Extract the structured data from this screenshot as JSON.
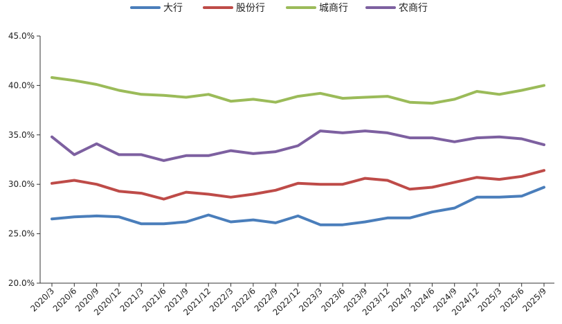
{
  "chart_data": {
    "type": "line",
    "title": "",
    "xlabel": "",
    "ylabel": "",
    "ylim": [
      20,
      45
    ],
    "yticks": [
      "20.0%",
      "25.0%",
      "30.0%",
      "35.0%",
      "40.0%",
      "45.0%"
    ],
    "ytick_values": [
      20,
      25,
      30,
      35,
      40,
      45
    ],
    "legend_position": "top",
    "grid": false,
    "categories": [
      "2020/3",
      "2020/6",
      "2020/9",
      "2020/12",
      "2021/3",
      "2021/6",
      "2021/9",
      "2021/12",
      "2022/3",
      "2022/6",
      "2022/9",
      "2022/12",
      "2023/3",
      "2023/6",
      "2023/9",
      "2023/12",
      "2024/3",
      "2024/6",
      "2024/9",
      "2024/12",
      "2025/3",
      "2025/6",
      "2025/9"
    ],
    "series": [
      {
        "name": "大行",
        "color": "#4a7ebb",
        "values": [
          26.5,
          26.7,
          26.8,
          26.7,
          26.0,
          26.0,
          26.2,
          26.9,
          26.2,
          26.4,
          26.1,
          26.8,
          25.9,
          25.9,
          26.2,
          26.6,
          26.6,
          27.2,
          27.6,
          28.7,
          28.7,
          28.8,
          29.7
        ]
      },
      {
        "name": "股份行",
        "color": "#be4b48",
        "values": [
          30.1,
          30.4,
          30.0,
          29.3,
          29.1,
          28.5,
          29.2,
          29.0,
          28.7,
          29.0,
          29.4,
          30.1,
          30.0,
          30.0,
          30.6,
          30.4,
          29.5,
          29.7,
          30.2,
          30.7,
          30.5,
          30.8,
          31.4
        ]
      },
      {
        "name": "城商行",
        "color": "#9bbb59",
        "values": [
          40.8,
          40.5,
          40.1,
          39.5,
          39.1,
          39.0,
          38.8,
          39.1,
          38.4,
          38.6,
          38.3,
          38.9,
          39.2,
          38.7,
          38.8,
          38.9,
          38.3,
          38.2,
          38.6,
          39.4,
          39.1,
          39.5,
          40.0
        ]
      },
      {
        "name": "农商行",
        "color": "#7d60a0",
        "values": [
          34.8,
          33.0,
          34.1,
          33.0,
          33.0,
          32.4,
          32.9,
          32.9,
          33.4,
          33.1,
          33.3,
          33.9,
          35.4,
          35.2,
          35.4,
          35.2,
          34.7,
          34.7,
          34.3,
          34.7,
          34.8,
          34.6,
          34.0
        ]
      }
    ]
  }
}
